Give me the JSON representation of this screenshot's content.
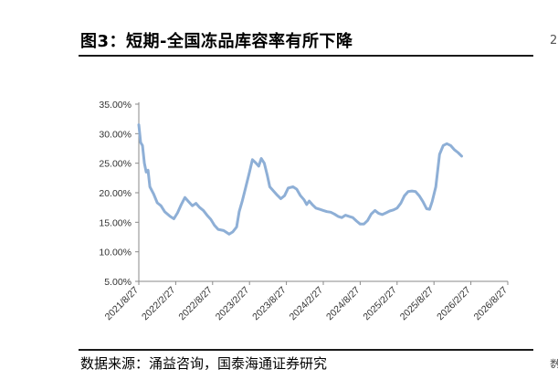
{
  "figure": {
    "title": "图3：短期-全国冻品库容率有所下降",
    "source": "数据来源：涌益咨询，国泰海通证券研究",
    "edge_marks": [
      "2",
      "数"
    ]
  },
  "chart_data": {
    "type": "line",
    "title": "",
    "xlabel": "",
    "ylabel": "",
    "x_ticks": [
      "2021/8/27",
      "2022/2/27",
      "2022/8/27",
      "2023/2/27",
      "2023/8/27",
      "2024/2/27",
      "2024/8/27",
      "2025/2/27",
      "2025/8/27",
      "2026/2/27",
      "2026/8/27"
    ],
    "y_ticks": [
      "5.00%",
      "10.00%",
      "15.00%",
      "20.00%",
      "25.00%",
      "30.00%",
      "35.00%"
    ],
    "ylim": [
      5,
      35
    ],
    "grid": false,
    "legend": "none",
    "line_color": "#8eafd6",
    "series": [
      {
        "values": [
          [
            0.0,
            31.5
          ],
          [
            0.05,
            28.5
          ],
          [
            0.1,
            28.0
          ],
          [
            0.15,
            25.0
          ],
          [
            0.2,
            23.5
          ],
          [
            0.25,
            23.8
          ],
          [
            0.3,
            21.0
          ],
          [
            0.4,
            19.8
          ],
          [
            0.5,
            18.3
          ],
          [
            0.6,
            17.8
          ],
          [
            0.7,
            16.8
          ],
          [
            0.85,
            16.0
          ],
          [
            0.95,
            15.6
          ],
          [
            1.05,
            16.6
          ],
          [
            1.15,
            18.0
          ],
          [
            1.25,
            19.2
          ],
          [
            1.35,
            18.5
          ],
          [
            1.45,
            17.8
          ],
          [
            1.55,
            18.2
          ],
          [
            1.65,
            17.5
          ],
          [
            1.75,
            17.0
          ],
          [
            1.85,
            16.2
          ],
          [
            1.95,
            15.5
          ],
          [
            2.05,
            14.5
          ],
          [
            2.15,
            13.8
          ],
          [
            2.3,
            13.6
          ],
          [
            2.45,
            13.0
          ],
          [
            2.55,
            13.4
          ],
          [
            2.65,
            14.2
          ],
          [
            2.72,
            16.8
          ],
          [
            2.8,
            18.5
          ],
          [
            2.9,
            21.0
          ],
          [
            3.0,
            23.5
          ],
          [
            3.08,
            25.6
          ],
          [
            3.18,
            25.0
          ],
          [
            3.25,
            24.5
          ],
          [
            3.32,
            25.8
          ],
          [
            3.4,
            25.0
          ],
          [
            3.48,
            23.0
          ],
          [
            3.55,
            21.0
          ],
          [
            3.65,
            20.3
          ],
          [
            3.75,
            19.6
          ],
          [
            3.85,
            19.0
          ],
          [
            3.95,
            19.5
          ],
          [
            4.05,
            20.8
          ],
          [
            4.18,
            21.0
          ],
          [
            4.28,
            20.6
          ],
          [
            4.38,
            19.5
          ],
          [
            4.48,
            18.8
          ],
          [
            4.55,
            18.0
          ],
          [
            4.62,
            18.6
          ],
          [
            4.7,
            18.0
          ],
          [
            4.8,
            17.4
          ],
          [
            4.9,
            17.2
          ],
          [
            5.0,
            17.0
          ],
          [
            5.1,
            16.8
          ],
          [
            5.2,
            16.7
          ],
          [
            5.3,
            16.4
          ],
          [
            5.4,
            16.0
          ],
          [
            5.5,
            15.8
          ],
          [
            5.6,
            16.2
          ],
          [
            5.7,
            16.0
          ],
          [
            5.8,
            15.8
          ],
          [
            5.9,
            15.2
          ],
          [
            6.0,
            14.7
          ],
          [
            6.1,
            14.7
          ],
          [
            6.2,
            15.3
          ],
          [
            6.3,
            16.4
          ],
          [
            6.4,
            17.0
          ],
          [
            6.5,
            16.5
          ],
          [
            6.6,
            16.3
          ],
          [
            6.7,
            16.6
          ],
          [
            6.8,
            16.9
          ],
          [
            6.9,
            17.1
          ],
          [
            7.0,
            17.4
          ],
          [
            7.1,
            18.2
          ],
          [
            7.2,
            19.5
          ],
          [
            7.3,
            20.2
          ],
          [
            7.4,
            20.3
          ],
          [
            7.5,
            20.2
          ],
          [
            7.6,
            19.5
          ],
          [
            7.7,
            18.5
          ],
          [
            7.8,
            17.3
          ],
          [
            7.88,
            17.2
          ],
          [
            7.95,
            18.5
          ],
          [
            8.05,
            21.0
          ],
          [
            8.15,
            26.5
          ],
          [
            8.25,
            28.0
          ],
          [
            8.35,
            28.3
          ],
          [
            8.45,
            28.0
          ],
          [
            8.55,
            27.3
          ],
          [
            8.65,
            26.8
          ],
          [
            8.75,
            26.2
          ]
        ]
      }
    ]
  }
}
